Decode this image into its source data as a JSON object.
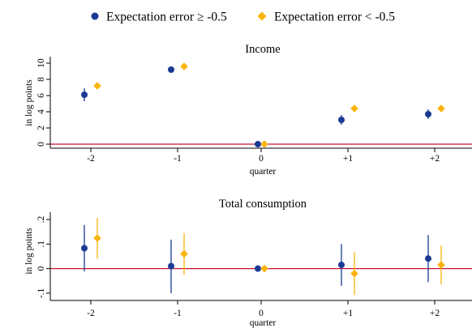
{
  "legend": {
    "items": [
      {
        "label": "Expectation error ≥ -0.5",
        "color": "#1a3a94",
        "marker": "circle"
      },
      {
        "label": "Expectation error < -0.5",
        "color": "#fbb40e",
        "marker": "diamond"
      }
    ]
  },
  "colors": {
    "zero_line": "#c8102e",
    "axes": "#000000"
  },
  "chart_data": [
    {
      "type": "scatter",
      "title": "Income",
      "xlabel": "quarter",
      "ylabel": "in log points",
      "x_ticks": [
        "-2",
        "-1",
        "0",
        "+1",
        "+2"
      ],
      "y_ticks": [
        0,
        2,
        4,
        6,
        8,
        10
      ],
      "y_tick_labels": [
        "0",
        "2",
        "4",
        "6",
        "8",
        "10"
      ],
      "ylim": [
        -0.5,
        10.8
      ],
      "reference_line": 0,
      "series": [
        {
          "name": "Expectation error ≥ -0.5",
          "color": "#1a3a94",
          "marker": "circle",
          "x": [
            "-2",
            "-1",
            "0",
            "+1",
            "+2"
          ],
          "values": [
            6.1,
            9.2,
            0,
            3.0,
            3.7
          ],
          "ci_low": [
            5.3,
            9.0,
            0,
            2.4,
            3.1
          ],
          "ci_high": [
            6.9,
            9.4,
            0,
            3.6,
            4.3
          ]
        },
        {
          "name": "Expectation error < -0.5",
          "color": "#fbb40e",
          "marker": "diamond",
          "x": [
            "-2",
            "-1",
            "0",
            "+1",
            "+2"
          ],
          "values": [
            7.2,
            9.6,
            0,
            4.4,
            4.4
          ],
          "ci_low": [
            7.0,
            9.4,
            0,
            4.2,
            4.2
          ],
          "ci_high": [
            7.4,
            9.8,
            0,
            4.6,
            4.6
          ]
        }
      ]
    },
    {
      "type": "scatter",
      "title": "Total consumption",
      "xlabel": "quarter",
      "ylabel": "in log points",
      "x_ticks": [
        "-2",
        "-1",
        "0",
        "+1",
        "+2"
      ],
      "y_ticks": [
        -0.1,
        0,
        0.1,
        0.2
      ],
      "y_tick_labels": [
        "-.1",
        "0",
        ".1",
        ".2"
      ],
      "ylim": [
        -0.13,
        0.23
      ],
      "reference_line": 0,
      "series": [
        {
          "name": "Expectation error ≥ -0.5",
          "color": "#1a3a94",
          "marker": "circle",
          "x": [
            "-2",
            "-1",
            "0",
            "+1",
            "+2"
          ],
          "values": [
            0.083,
            0.01,
            0,
            0.015,
            0.041
          ],
          "ci_low": [
            -0.012,
            -0.1,
            0,
            -0.07,
            -0.055
          ],
          "ci_high": [
            0.178,
            0.118,
            0,
            0.1,
            0.137
          ]
        },
        {
          "name": "Expectation error < -0.5",
          "color": "#fbb40e",
          "marker": "diamond",
          "x": [
            "-2",
            "-1",
            "0",
            "+1",
            "+2"
          ],
          "values": [
            0.124,
            0.06,
            0,
            -0.02,
            0.015
          ],
          "ci_low": [
            0.04,
            -0.025,
            0,
            -0.108,
            -0.065
          ],
          "ci_high": [
            0.206,
            0.145,
            0,
            0.068,
            0.095
          ]
        }
      ]
    }
  ]
}
